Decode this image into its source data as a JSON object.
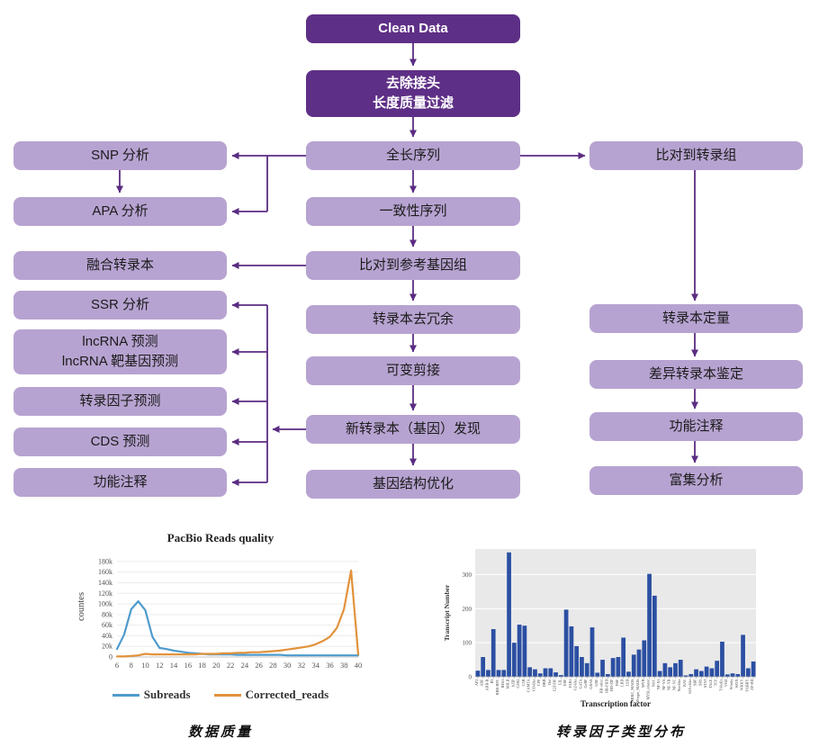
{
  "flow": {
    "clean_data": "Clean Data",
    "filter_line1": "去除接头",
    "filter_line2": "长度质量过滤",
    "full_length": "全长序列",
    "consensus": "一致性序列",
    "map_genome": "比对到参考基因组",
    "dedup": "转录本去冗余",
    "alt_splicing": "可变剪接",
    "novel_transcript": "新转录本（基因）发现",
    "gene_structure": "基因结构优化",
    "snp": "SNP 分析",
    "apa": "APA 分析",
    "fusion": "融合转录本",
    "ssr": "SSR 分析",
    "lncrna_line1": "lncRNA 预测",
    "lncrna_line2": "lncRNA 靶基因预测",
    "tf_predict": "转录因子预测",
    "cds": "CDS 预测",
    "annotation_left": "功能注释",
    "map_transcriptome": "比对到转录组",
    "quantify": "转录本定量",
    "diff_transcript": "差异转录本鉴定",
    "annotation_right": "功能注释",
    "enrichment": "富集分析",
    "arrow_color": "#5b2c82"
  },
  "chart_data": [
    {
      "type": "line",
      "title": "PacBio Reads quality",
      "ylabel": "countes",
      "xlabel": "",
      "x": [
        6,
        7,
        8,
        9,
        10,
        11,
        12,
        13,
        14,
        15,
        16,
        17,
        18,
        19,
        20,
        21,
        22,
        23,
        24,
        25,
        26,
        27,
        28,
        29,
        30,
        31,
        32,
        33,
        34,
        35,
        36,
        37,
        38,
        39,
        40
      ],
      "series": [
        {
          "name": "Subreads",
          "color": "#4e9bcd",
          "values_k": [
            15,
            42,
            90,
            105,
            88,
            38,
            17,
            15,
            12,
            10,
            8,
            7,
            6,
            5,
            5,
            5,
            5,
            4,
            4,
            4,
            4,
            4,
            4,
            4,
            3,
            3,
            3,
            3,
            3,
            3,
            3,
            3,
            3,
            3,
            3
          ]
        },
        {
          "name": "Corrected_reads",
          "color": "#e2923c",
          "values_k": [
            1,
            1,
            2,
            3,
            6,
            5,
            5,
            5,
            5,
            5,
            5,
            5,
            6,
            6,
            6,
            7,
            7,
            8,
            8,
            9,
            9,
            10,
            11,
            12,
            14,
            16,
            18,
            20,
            24,
            30,
            38,
            55,
            90,
            163,
            5
          ]
        }
      ],
      "xticks": [
        6,
        8,
        10,
        12,
        14,
        16,
        18,
        20,
        22,
        24,
        26,
        28,
        30,
        32,
        34,
        36,
        38,
        40
      ],
      "ytick_labels": [
        "0",
        "20k",
        "40k",
        "60k",
        "80k",
        "100k",
        "120k",
        "140k",
        "160k",
        "180k"
      ],
      "ytick_step_k": 20,
      "ylim_k": [
        0,
        190
      ],
      "legend_position": "bottom",
      "grid": true,
      "caption": "数据质量"
    },
    {
      "type": "bar",
      "title": "",
      "ylabel": "Transcript Number",
      "xlabel": "Transcription factor",
      "bar_color": "#2b4fa2",
      "plot_bg": "#e9e9e9",
      "categories": [
        "AP2",
        "ARF",
        "ARR-B",
        "B3",
        "BBR-BPC",
        "BES1",
        "bHLH",
        "bZIP",
        "C2H2",
        "C3H",
        "CAMTA",
        "CO-like",
        "CPP",
        "DBB",
        "Dof",
        "E2F/DP",
        "EIL",
        "ERF",
        "FAR1",
        "G2-like",
        "GATA",
        "GeBP",
        "GRAS",
        "GRF",
        "HB-other",
        "HB-PHD",
        "HD-ZIP",
        "HSF",
        "LBD",
        "LSD",
        "MIKC_MADS",
        "M-type_MADS",
        "MYB",
        "MYB_related",
        "NAC",
        "NF-X1",
        "NF-YA",
        "NF-YB",
        "NF-YC",
        "Nin-like",
        "RAV",
        "S1Fa-like",
        "SBP",
        "SRS",
        "STAT",
        "TALE",
        "TCP",
        "Trihelix",
        "VOZ",
        "Whirly",
        "WOX",
        "WRKY",
        "YABBY",
        "ZF-HD"
      ],
      "values": [
        18,
        58,
        20,
        140,
        20,
        20,
        365,
        100,
        153,
        150,
        28,
        22,
        10,
        25,
        25,
        13,
        5,
        197,
        148,
        90,
        58,
        40,
        145,
        12,
        50,
        8,
        55,
        58,
        115,
        15,
        65,
        80,
        107,
        302,
        238,
        17,
        40,
        28,
        40,
        50,
        4,
        8,
        22,
        17,
        30,
        25,
        47,
        103,
        7,
        10,
        8,
        123,
        25,
        45
      ],
      "yticks": [
        0,
        100,
        200,
        300
      ],
      "ylim": [
        0,
        375
      ],
      "grid": true,
      "caption": "转录因子类型分布"
    }
  ]
}
